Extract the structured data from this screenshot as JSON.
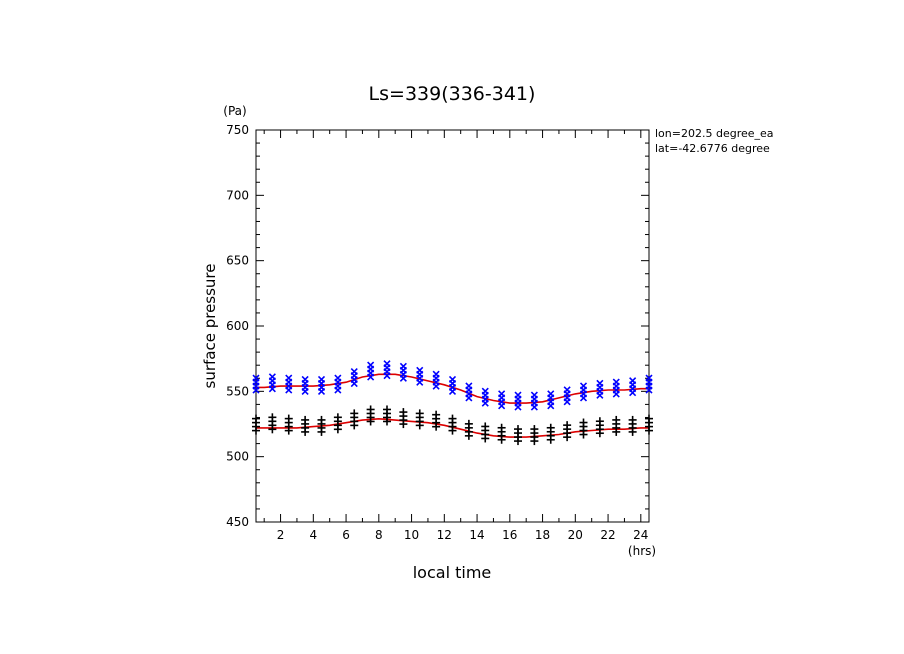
{
  "chart_data": {
    "type": "scatter",
    "title": "Ls=339(336-341)",
    "xlabel": "local time",
    "ylabel": "surface pressure",
    "x_unit": "(hrs)",
    "y_unit": "(Pa)",
    "xlim": [
      0.5,
      24.5
    ],
    "ylim": [
      450,
      750
    ],
    "x_major_ticks": [
      2,
      4,
      6,
      8,
      10,
      12,
      14,
      16,
      18,
      20,
      22,
      24
    ],
    "y_major_ticks": [
      450,
      500,
      550,
      600,
      650,
      700,
      750
    ],
    "info_lines": [
      "lon=202.5 degree_ea",
      "lat=-42.6776 degree"
    ],
    "grid": false,
    "series": [
      {
        "marker": "x",
        "color": "#0000ff",
        "x": [
          0.5,
          1.5,
          2.5,
          3.5,
          4.5,
          5.5,
          6.5,
          7.5,
          8.5,
          9.5,
          10.5,
          11.5,
          12.5,
          13.5,
          14.5,
          15.5,
          16.5,
          17.5,
          18.5,
          19.5,
          20.5,
          21.5,
          22.5,
          23.5,
          24.5
        ],
        "y": [
          554,
          555,
          554,
          553,
          553,
          554,
          559,
          564,
          565,
          563,
          560,
          557,
          553,
          548,
          544,
          542,
          541,
          541,
          542,
          545,
          548,
          550,
          551,
          552,
          554
        ]
      },
      {
        "marker": "+",
        "color": "#000000",
        "x": [
          0.5,
          1.5,
          2.5,
          3.5,
          4.5,
          5.5,
          6.5,
          7.5,
          8.5,
          9.5,
          10.5,
          11.5,
          12.5,
          13.5,
          14.5,
          15.5,
          16.5,
          17.5,
          18.5,
          19.5,
          20.5,
          21.5,
          22.5,
          23.5,
          24.5
        ],
        "y": [
          523,
          524,
          523,
          522,
          522,
          524,
          527,
          530,
          530,
          528,
          527,
          526,
          523,
          519,
          517,
          516,
          515,
          515,
          516,
          518,
          520,
          521,
          522,
          522,
          523
        ]
      },
      {
        "type": "line",
        "color": "#dd0000",
        "x": [
          0.5,
          1,
          2,
          3,
          4,
          5,
          6,
          7,
          8,
          9,
          10,
          11,
          12,
          13,
          14,
          15,
          16,
          17,
          18,
          19,
          20,
          21,
          22,
          23,
          24,
          24.5
        ],
        "y": [
          553,
          553,
          554,
          554,
          554,
          555,
          557,
          561,
          563,
          563,
          561,
          558,
          555,
          551,
          546,
          543,
          541,
          541,
          542,
          545,
          548,
          550,
          551,
          551,
          552,
          552
        ]
      },
      {
        "type": "line",
        "color": "#dd0000",
        "x": [
          0.5,
          1,
          2,
          3,
          4,
          5,
          6,
          7,
          8,
          9,
          10,
          11,
          12,
          13,
          14,
          15,
          16,
          17,
          18,
          19,
          20,
          21,
          22,
          23,
          24,
          24.5
        ],
        "y": [
          522,
          522,
          522,
          522,
          523,
          524,
          526,
          528,
          529,
          528,
          527,
          526,
          524,
          521,
          518,
          516,
          515,
          515,
          516,
          517,
          519,
          520,
          521,
          521,
          522,
          522
        ]
      }
    ]
  }
}
